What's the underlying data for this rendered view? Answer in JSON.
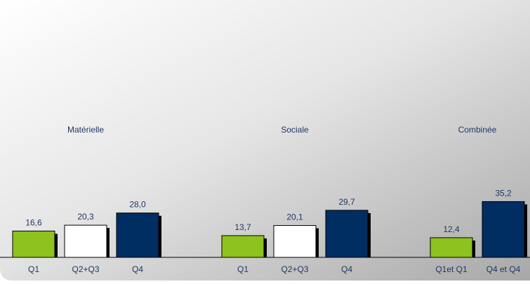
{
  "chart_data": {
    "type": "bar",
    "groups": [
      {
        "label": "Matérielle",
        "bars": [
          {
            "category": "Q1",
            "value": 16.6,
            "value_label": "16,6",
            "color": "#8DC21F"
          },
          {
            "category": "Q2+Q3",
            "value": 20.3,
            "value_label": "20,3",
            "color": "#FFFFFF"
          },
          {
            "category": "Q4",
            "value": 28.0,
            "value_label": "28,0",
            "color": "#002D62"
          }
        ]
      },
      {
        "label": "Sociale",
        "bars": [
          {
            "category": "Q1",
            "value": 13.7,
            "value_label": "13,7",
            "color": "#8DC21F"
          },
          {
            "category": "Q2+Q3",
            "value": 20.1,
            "value_label": "20,1",
            "color": "#FFFFFF"
          },
          {
            "category": "Q4",
            "value": 29.7,
            "value_label": "29,7",
            "color": "#002D62"
          }
        ]
      },
      {
        "label": "Combinée",
        "bars": [
          {
            "category": "Q1et Q1",
            "value": 12.4,
            "value_label": "12,4",
            "color": "#8DC21F"
          },
          {
            "category": "Q4 et Q4",
            "value": 35.2,
            "value_label": "35,2",
            "color": "#002D62"
          }
        ]
      }
    ],
    "ylim": [
      0,
      35.2
    ],
    "grid": false,
    "legend": false,
    "title": "",
    "xlabel": "",
    "ylabel": ""
  },
  "colors": {
    "text": "#1F3864",
    "bar_border": "#000000",
    "bar_shadow": "#000000",
    "background_light": "#FFFFFF",
    "background_dark": "#B0B0B0"
  }
}
